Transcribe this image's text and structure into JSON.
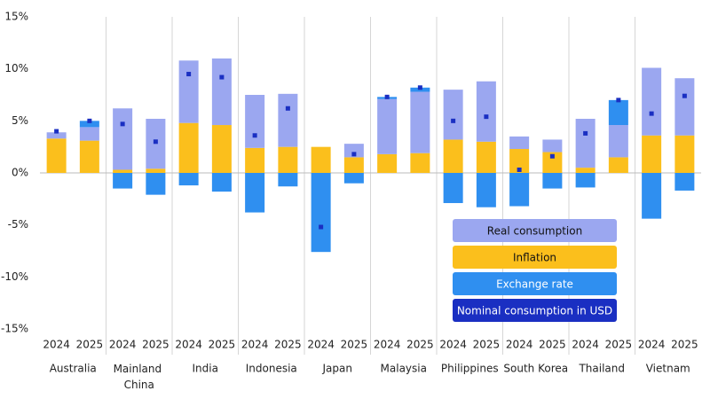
{
  "chart_data": {
    "type": "stacked-bar",
    "groups": [
      "Australia",
      "Mainland China",
      "India",
      "Indonesia",
      "Japan",
      "Malaysia",
      "Philippines",
      "South Korea",
      "Thailand",
      "Vietnam"
    ],
    "categories": [
      "2024",
      "2025",
      "2024",
      "2025",
      "2024",
      "2025",
      "2024",
      "2025",
      "2024",
      "2025",
      "2024",
      "2025",
      "2024",
      "2025",
      "2024",
      "2025",
      "2024",
      "2025",
      "2024",
      "2025"
    ],
    "series": [
      {
        "name": "Real consumption",
        "color": "#9ba7f0",
        "values": [
          0.6,
          1.3,
          5.9,
          4.8,
          6.0,
          6.4,
          5.1,
          5.1,
          0,
          1.3,
          5.3,
          5.9,
          4.8,
          5.8,
          1.2,
          1.2,
          4.7,
          3.1,
          6.5,
          5.5
        ]
      },
      {
        "name": "Inflation",
        "color": "#fbbf1c",
        "values": [
          3.3,
          3.1,
          0.3,
          0.4,
          4.8,
          4.6,
          2.4,
          2.5,
          2.5,
          1.5,
          1.8,
          1.9,
          3.2,
          3.0,
          2.3,
          2.0,
          0.5,
          1.5,
          3.6,
          3.6
        ]
      },
      {
        "name": "Exchange rate",
        "color": "#2f8ff0",
        "values": [
          0,
          0.6,
          -1.5,
          -2.1,
          -1.2,
          -1.8,
          -3.8,
          -1.3,
          -7.6,
          -1.0,
          0.2,
          0.4,
          -2.9,
          -3.3,
          -3.2,
          -1.5,
          -1.4,
          2.4,
          -4.4,
          -1.7
        ]
      },
      {
        "name": "Nominal consumption in USD",
        "color": "#1a2fc2",
        "type": "marker",
        "values": [
          4.0,
          5.0,
          4.7,
          3.0,
          9.5,
          9.2,
          3.6,
          6.2,
          -5.2,
          1.8,
          7.3,
          8.2,
          5.0,
          5.4,
          0.3,
          1.6,
          3.8,
          7.0,
          5.7,
          7.4
        ]
      }
    ],
    "ylim": [
      -15,
      15
    ],
    "yticks": [
      {
        "value": -15,
        "label": "-15%"
      },
      {
        "value": -10,
        "label": "-10%"
      },
      {
        "value": -5,
        "label": "-5%"
      },
      {
        "value": 0,
        "label": "0%"
      },
      {
        "value": 5,
        "label": "5%"
      },
      {
        "value": 10,
        "label": "10%"
      },
      {
        "value": 15,
        "label": "15%"
      }
    ],
    "grid": false,
    "legend": "lower right"
  }
}
